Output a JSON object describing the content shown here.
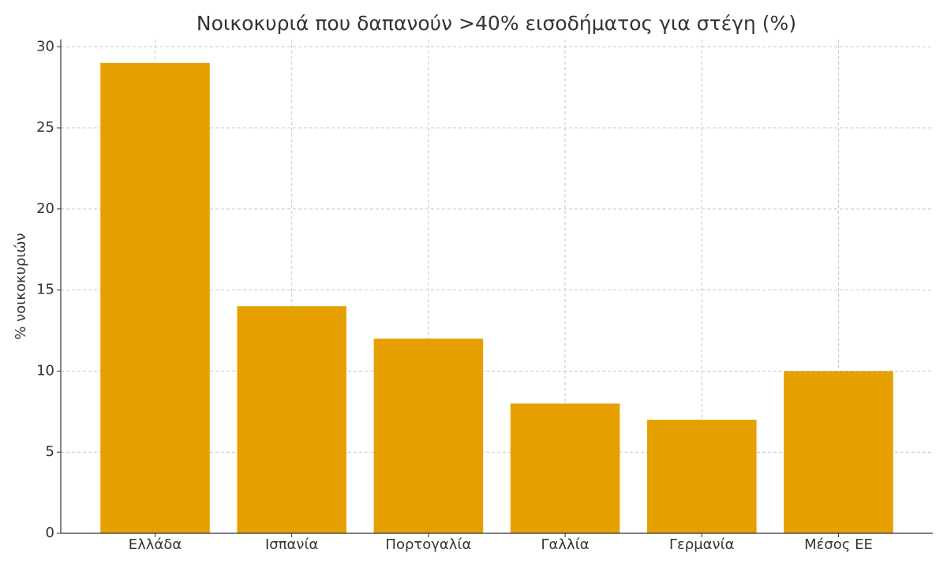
{
  "chart_data": {
    "type": "bar",
    "title": "Νοικοκυριά που δαπανούν >40% εισοδήματος για στέγη (%)",
    "y_label": "% νοικοκυριών",
    "categories": [
      "Ελλάδα",
      "Ισπανία",
      "Πορτογαλία",
      "Γαλλία",
      "Γερμανία",
      "Μέσος ΕΕ"
    ],
    "values": [
      29,
      14,
      12,
      8,
      7,
      10
    ],
    "color": "#e5a000",
    "ylim": [
      0,
      30.45
    ],
    "yticks": [
      0,
      5,
      10,
      15,
      20,
      25,
      30
    ],
    "grid": true
  }
}
